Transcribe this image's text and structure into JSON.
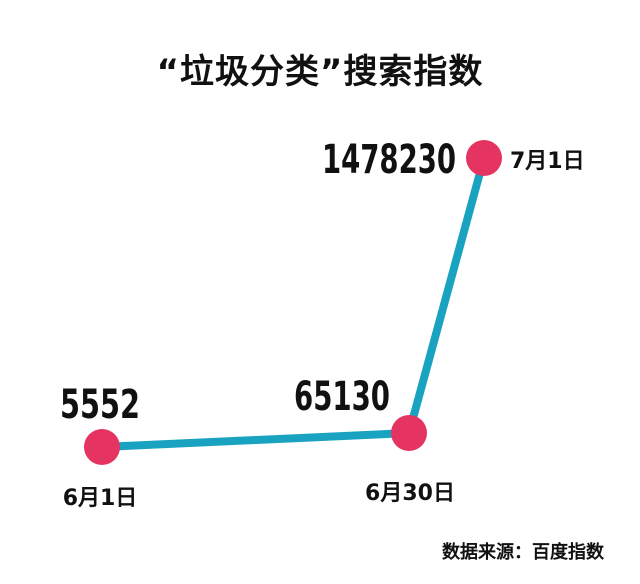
{
  "title": "“垃圾分类”搜索指数",
  "source_label": "数据来源：百度指数",
  "chart_data": {
    "type": "line",
    "title": "“垃圾分类”搜索指数",
    "x": [
      "6月1日",
      "6月30日",
      "7月1日"
    ],
    "series": [
      {
        "values": [
          5552,
          65130,
          1478230
        ],
        "value_labels": [
          "5552",
          "65130",
          "1478230"
        ]
      }
    ],
    "colors": {
      "line": "#1aa3c0",
      "marker": "#e63462",
      "text": "#111111"
    },
    "xlabel": "",
    "ylabel": "",
    "grid": false,
    "legend": "none"
  }
}
